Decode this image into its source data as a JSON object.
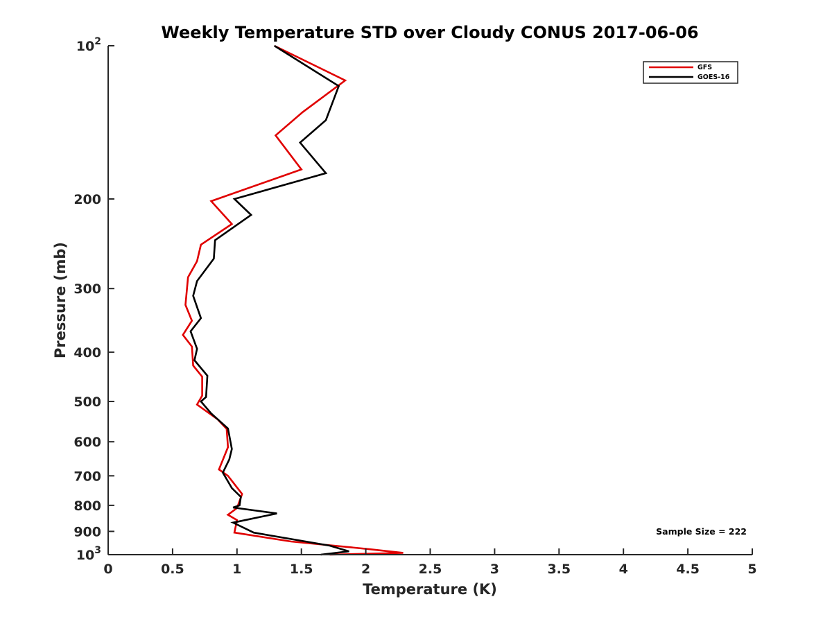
{
  "chart_data": {
    "type": "line",
    "title": "Weekly Temperature STD over Cloudy CONUS 2017-06-06",
    "xlabel": "Temperature (K)",
    "ylabel": "Pressure (mb)",
    "xlim": [
      0,
      5
    ],
    "ylim": [
      100,
      1000
    ],
    "y_scale": "log",
    "y_reversed": true,
    "grid": false,
    "legend_position": "top-right",
    "x_ticks": [
      {
        "value": 0,
        "label": "0"
      },
      {
        "value": 0.5,
        "label": "0.5"
      },
      {
        "value": 1,
        "label": "1"
      },
      {
        "value": 1.5,
        "label": "1.5"
      },
      {
        "value": 2,
        "label": "2"
      },
      {
        "value": 2.5,
        "label": "2.5"
      },
      {
        "value": 3,
        "label": "3"
      },
      {
        "value": 3.5,
        "label": "3.5"
      },
      {
        "value": 4,
        "label": "4"
      },
      {
        "value": 4.5,
        "label": "4.5"
      },
      {
        "value": 5,
        "label": "5"
      }
    ],
    "y_ticks": [
      {
        "value": 100,
        "base": "10",
        "exp": "2"
      },
      {
        "value": 200,
        "label": "200"
      },
      {
        "value": 300,
        "label": "300"
      },
      {
        "value": 400,
        "label": "400"
      },
      {
        "value": 500,
        "label": "500"
      },
      {
        "value": 600,
        "label": "600"
      },
      {
        "value": 700,
        "label": "700"
      },
      {
        "value": 800,
        "label": "800"
      },
      {
        "value": 900,
        "label": "900"
      },
      {
        "value": 1000,
        "base": "10",
        "exp": "3"
      }
    ],
    "annotation": "Sample Size = 222",
    "series": [
      {
        "name": "GFS",
        "color": "#e00000",
        "points": [
          [
            1.29,
            100
          ],
          [
            1.84,
            117
          ],
          [
            1.51,
            135
          ],
          [
            1.3,
            150
          ],
          [
            1.5,
            175
          ],
          [
            0.8,
            202
          ],
          [
            0.96,
            224
          ],
          [
            0.72,
            246
          ],
          [
            0.69,
            265
          ],
          [
            0.62,
            285
          ],
          [
            0.6,
            323
          ],
          [
            0.65,
            347
          ],
          [
            0.58,
            370
          ],
          [
            0.65,
            390
          ],
          [
            0.66,
            425
          ],
          [
            0.73,
            447
          ],
          [
            0.73,
            487
          ],
          [
            0.69,
            507
          ],
          [
            0.85,
            542
          ],
          [
            0.92,
            566
          ],
          [
            0.93,
            615
          ],
          [
            0.86,
            680
          ],
          [
            0.93,
            700
          ],
          [
            1.04,
            760
          ],
          [
            1.0,
            810
          ],
          [
            0.93,
            835
          ],
          [
            1.0,
            855
          ],
          [
            0.98,
            905
          ],
          [
            1.42,
            942
          ],
          [
            2.02,
            975
          ],
          [
            2.29,
            992
          ],
          [
            1.72,
            1000
          ]
        ]
      },
      {
        "name": "GOES-16",
        "color": "#000000",
        "points": [
          [
            1.29,
            100
          ],
          [
            1.79,
            120
          ],
          [
            1.69,
            140
          ],
          [
            1.49,
            155
          ],
          [
            1.69,
            178
          ],
          [
            0.98,
            200
          ],
          [
            1.11,
            215
          ],
          [
            0.83,
            241
          ],
          [
            0.82,
            262
          ],
          [
            0.69,
            290
          ],
          [
            0.66,
            310
          ],
          [
            0.72,
            343
          ],
          [
            0.64,
            364
          ],
          [
            0.69,
            394
          ],
          [
            0.67,
            415
          ],
          [
            0.77,
            445
          ],
          [
            0.76,
            490
          ],
          [
            0.72,
            500
          ],
          [
            0.8,
            528
          ],
          [
            0.93,
            565
          ],
          [
            0.96,
            620
          ],
          [
            0.94,
            650
          ],
          [
            0.89,
            690
          ],
          [
            0.96,
            740
          ],
          [
            1.03,
            770
          ],
          [
            1.02,
            800
          ],
          [
            0.97,
            808
          ],
          [
            1.31,
            830
          ],
          [
            0.97,
            865
          ],
          [
            1.13,
            905
          ],
          [
            1.72,
            960
          ],
          [
            1.87,
            985
          ],
          [
            1.65,
            1000
          ]
        ]
      }
    ]
  }
}
